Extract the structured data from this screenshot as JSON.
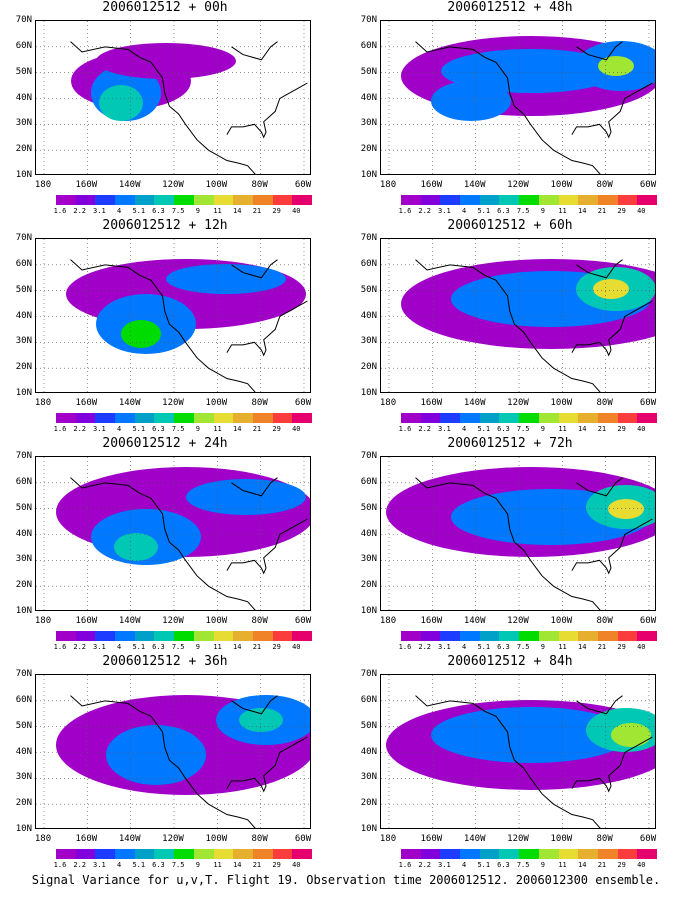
{
  "caption": "Signal Variance for u,v,T. Flight 19. Observation time 2006012512. 2006012300 ensemble.",
  "y_ticks": [
    "70N",
    "60N",
    "50N",
    "40N",
    "30N",
    "20N",
    "10N"
  ],
  "x_ticks": [
    "180",
    "160W",
    "140W",
    "120W",
    "100W",
    "80W",
    "60W"
  ],
  "colorbar": {
    "labels": [
      "1.6",
      "2.2",
      "3.1",
      "4",
      "5.1",
      "6.3",
      "7.5",
      "9",
      "11",
      "14",
      "21",
      "29",
      "40"
    ],
    "colors": [
      "#a000c8",
      "#8200dc",
      "#1e3cff",
      "#0078ff",
      "#00a0c8",
      "#00c8b4",
      "#00dc00",
      "#a0e632",
      "#e6dc32",
      "#e6af2d",
      "#f08228",
      "#fa3c3c",
      "#e6006e"
    ]
  },
  "panels": [
    {
      "title": "2006012512 + 00h"
    },
    {
      "title": "2006012512 + 48h"
    },
    {
      "title": "2006012512 + 12h"
    },
    {
      "title": "2006012512 + 60h"
    },
    {
      "title": "2006012512 + 24h"
    },
    {
      "title": "2006012512 + 72h"
    },
    {
      "title": "2006012512 + 36h"
    },
    {
      "title": "2006012512 + 84h"
    }
  ],
  "map_extent": {
    "lon": [
      -180,
      -60
    ],
    "lat": [
      10,
      70
    ]
  }
}
